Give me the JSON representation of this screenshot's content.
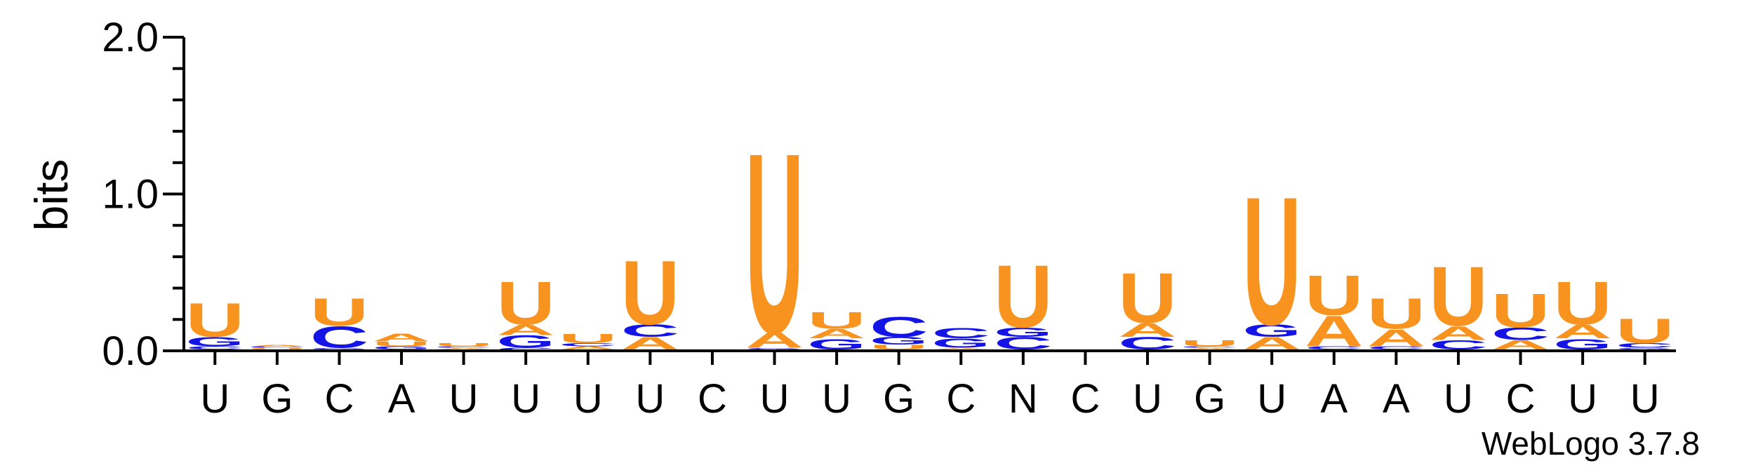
{
  "chart_data": {
    "type": "sequence-logo",
    "ylabel": "bits",
    "ylim": [
      0,
      2.0
    ],
    "yticks": [
      "0.0",
      "1.0",
      "2.0"
    ],
    "xlabels": [
      "U",
      "G",
      "C",
      "A",
      "U",
      "U",
      "U",
      "U",
      "C",
      "U",
      "U",
      "G",
      "C",
      "N",
      "C",
      "U",
      "G",
      "U",
      "A",
      "A",
      "U",
      "C",
      "U",
      "U"
    ],
    "colors": {
      "A": "#f7931e",
      "U": "#f7931e",
      "G": "#1414e6",
      "C": "#1414e6"
    },
    "positions": [
      [
        {
          "letter": "A",
          "bits": 0.01
        },
        {
          "letter": "C",
          "bits": 0.02
        },
        {
          "letter": "G",
          "bits": 0.06
        },
        {
          "letter": "U",
          "bits": 0.22
        }
      ],
      [
        {
          "letter": "G",
          "bits": 0.01
        },
        {
          "letter": "U",
          "bits": 0.01
        },
        {
          "letter": "C",
          "bits": 0.01
        },
        {
          "letter": "A",
          "bits": 0.01
        }
      ],
      [
        {
          "letter": "A",
          "bits": 0.01
        },
        {
          "letter": "G",
          "bits": 0.01
        },
        {
          "letter": "C",
          "bits": 0.14
        },
        {
          "letter": "U",
          "bits": 0.18
        }
      ],
      [
        {
          "letter": "C",
          "bits": 0.01
        },
        {
          "letter": "G",
          "bits": 0.02
        },
        {
          "letter": "U",
          "bits": 0.03
        },
        {
          "letter": "A",
          "bits": 0.05
        }
      ],
      [
        {
          "letter": "G",
          "bits": 0.01
        },
        {
          "letter": "A",
          "bits": 0.01
        },
        {
          "letter": "C",
          "bits": 0.01
        },
        {
          "letter": "U",
          "bits": 0.02
        }
      ],
      [
        {
          "letter": "C",
          "bits": 0.02
        },
        {
          "letter": "G",
          "bits": 0.08
        },
        {
          "letter": "A",
          "bits": 0.07
        },
        {
          "letter": "U",
          "bits": 0.28
        }
      ],
      [
        {
          "letter": "G",
          "bits": 0.01
        },
        {
          "letter": "A",
          "bits": 0.02
        },
        {
          "letter": "C",
          "bits": 0.02
        },
        {
          "letter": "U",
          "bits": 0.06
        }
      ],
      [
        {
          "letter": "G",
          "bits": 0.01
        },
        {
          "letter": "A",
          "bits": 0.08
        },
        {
          "letter": "C",
          "bits": 0.08
        },
        {
          "letter": "U",
          "bits": 0.42
        }
      ],
      [
        {
          "letter": "A",
          "bits": 0.0
        },
        {
          "letter": "C",
          "bits": 0.0
        },
        {
          "letter": "G",
          "bits": 0.0
        },
        {
          "letter": "U",
          "bits": 0.0
        }
      ],
      [
        {
          "letter": "C",
          "bits": 0.01
        },
        {
          "letter": "G",
          "bits": 0.01
        },
        {
          "letter": "A",
          "bits": 0.1
        },
        {
          "letter": "U",
          "bits": 1.18
        }
      ],
      [
        {
          "letter": "C",
          "bits": 0.01
        },
        {
          "letter": "G",
          "bits": 0.07
        },
        {
          "letter": "A",
          "bits": 0.06
        },
        {
          "letter": "U",
          "bits": 0.11
        }
      ],
      [
        {
          "letter": "A",
          "bits": 0.01
        },
        {
          "letter": "U",
          "bits": 0.03
        },
        {
          "letter": "G",
          "bits": 0.05
        },
        {
          "letter": "C",
          "bits": 0.13
        }
      ],
      [
        {
          "letter": "U",
          "bits": 0.01
        },
        {
          "letter": "A",
          "bits": 0.01
        },
        {
          "letter": "G",
          "bits": 0.06
        },
        {
          "letter": "C",
          "bits": 0.07
        }
      ],
      [
        {
          "letter": "A",
          "bits": 0.01
        },
        {
          "letter": "C",
          "bits": 0.08
        },
        {
          "letter": "G",
          "bits": 0.06
        },
        {
          "letter": "U",
          "bits": 0.41
        }
      ],
      [
        {
          "letter": "A",
          "bits": 0.0
        },
        {
          "letter": "C",
          "bits": 0.0
        },
        {
          "letter": "G",
          "bits": 0.0
        },
        {
          "letter": "U",
          "bits": 0.0
        }
      ],
      [
        {
          "letter": "G",
          "bits": 0.01
        },
        {
          "letter": "C",
          "bits": 0.08
        },
        {
          "letter": "A",
          "bits": 0.09
        },
        {
          "letter": "U",
          "bits": 0.33
        }
      ],
      [
        {
          "letter": "G",
          "bits": 0.01
        },
        {
          "letter": "A",
          "bits": 0.01
        },
        {
          "letter": "C",
          "bits": 0.01
        },
        {
          "letter": "U",
          "bits": 0.04
        }
      ],
      [
        {
          "letter": "C",
          "bits": 0.01
        },
        {
          "letter": "A",
          "bits": 0.08
        },
        {
          "letter": "G",
          "bits": 0.08
        },
        {
          "letter": "U",
          "bits": 0.84
        }
      ],
      [
        {
          "letter": "G",
          "bits": 0.01
        },
        {
          "letter": "C",
          "bits": 0.02
        },
        {
          "letter": "A",
          "bits": 0.2
        },
        {
          "letter": "U",
          "bits": 0.26
        }
      ],
      [
        {
          "letter": "G",
          "bits": 0.01
        },
        {
          "letter": "C",
          "bits": 0.02
        },
        {
          "letter": "A",
          "bits": 0.11
        },
        {
          "letter": "U",
          "bits": 0.2
        }
      ],
      [
        {
          "letter": "G",
          "bits": 0.01
        },
        {
          "letter": "C",
          "bits": 0.06
        },
        {
          "letter": "A",
          "bits": 0.09
        },
        {
          "letter": "U",
          "bits": 0.39
        }
      ],
      [
        {
          "letter": "G",
          "bits": 0.01
        },
        {
          "letter": "A",
          "bits": 0.06
        },
        {
          "letter": "C",
          "bits": 0.08
        },
        {
          "letter": "U",
          "bits": 0.22
        }
      ],
      [
        {
          "letter": "C",
          "bits": 0.01
        },
        {
          "letter": "G",
          "bits": 0.07
        },
        {
          "letter": "A",
          "bits": 0.09
        },
        {
          "letter": "U",
          "bits": 0.28
        }
      ],
      [
        {
          "letter": "A",
          "bits": 0.01
        },
        {
          "letter": "G",
          "bits": 0.01
        },
        {
          "letter": "C",
          "bits": 0.03
        },
        {
          "letter": "U",
          "bits": 0.16
        }
      ]
    ]
  },
  "footer": {
    "version_label": "WebLogo 3.7.8"
  }
}
